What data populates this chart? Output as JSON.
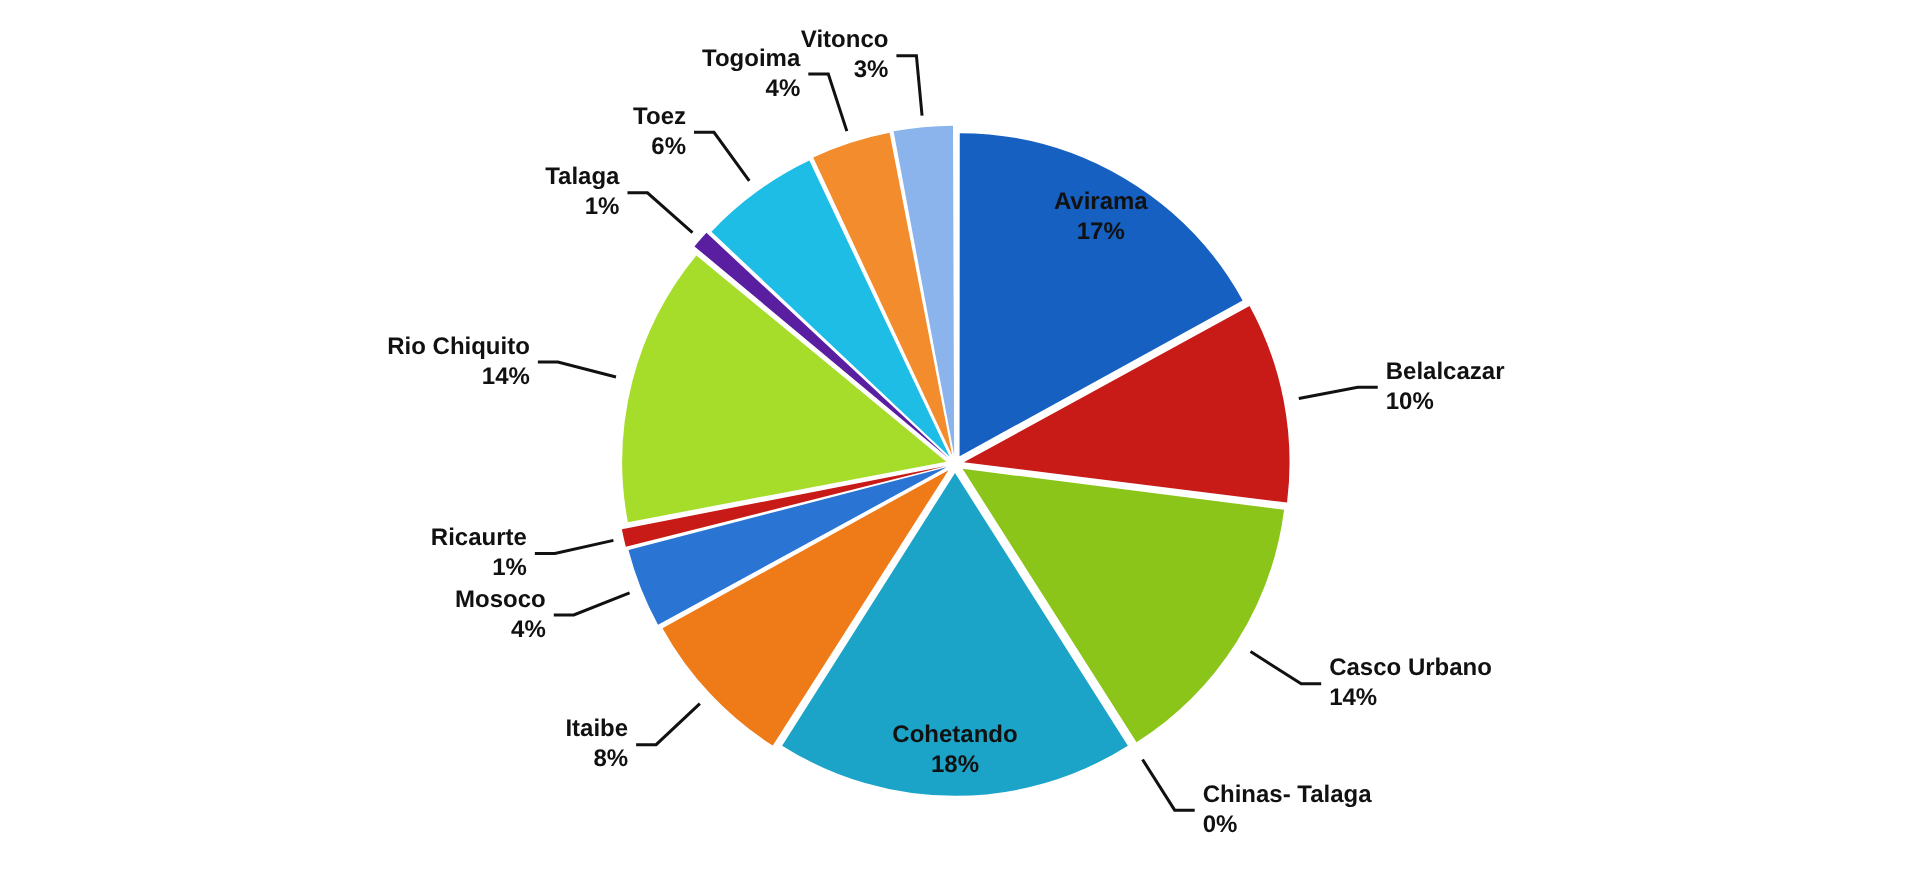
{
  "chart_data": {
    "type": "pie",
    "categories": [
      "Avirama",
      "Belalcazar",
      "Casco Urbano",
      "Chinas- Talaga",
      "Cohetando",
      "Itaibe",
      "Mosoco",
      "Ricaurte",
      "Rio Chiquito",
      "Talaga",
      "Toez",
      "Togoima",
      "Vitonco"
    ],
    "values": [
      17,
      10,
      14,
      0,
      18,
      8,
      4,
      1,
      14,
      1,
      6,
      4,
      3
    ],
    "value_labels": [
      "17%",
      "10%",
      "14%",
      "0%",
      "18%",
      "8%",
      "4%",
      "1%",
      "14%",
      "1%",
      "6%",
      "4%",
      "3%"
    ],
    "colors": [
      "#1560c0",
      "#c81a17",
      "#8cc51a",
      "#3a1a6a",
      "#1ba3c8",
      "#ee7a18",
      "#2a74d4",
      "#c81a17",
      "#a6dc2a",
      "#5a1fa0",
      "#1ebde6",
      "#f28c2c",
      "#8cb4ec"
    ]
  }
}
